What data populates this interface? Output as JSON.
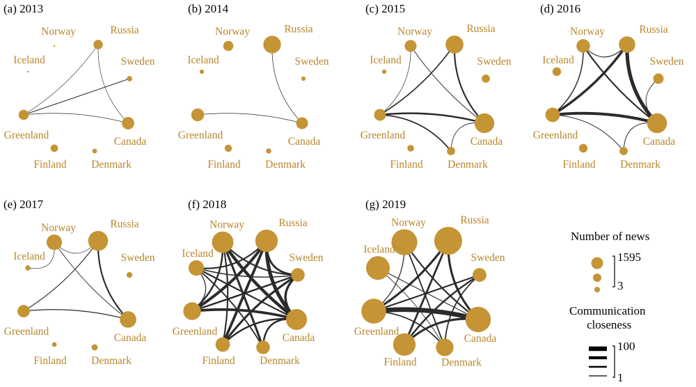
{
  "colors": {
    "node": "#c49435",
    "label": "#b8862b",
    "edge": "#2b2b2b"
  },
  "countries": [
    "Norway",
    "Russia",
    "Iceland",
    "Sweden",
    "Greenland",
    "Canada",
    "Finland",
    "Denmark"
  ],
  "panels": [
    {
      "title": "(a) 2013",
      "nodes": {
        "Norway": 3,
        "Russia": 90,
        "Iceland": 3,
        "Sweden": 14,
        "Greenland": 110,
        "Canada": 190,
        "Finland": 45,
        "Denmark": 8
      },
      "edges": [
        {
          "source": "Greenland",
          "target": "Sweden",
          "closeness": 8
        },
        {
          "source": "Greenland",
          "target": "Russia",
          "closeness": 2
        },
        {
          "source": "Greenland",
          "target": "Canada",
          "closeness": 3
        },
        {
          "source": "Russia",
          "target": "Canada",
          "closeness": 2
        }
      ]
    },
    {
      "title": "(b) 2014",
      "nodes": {
        "Norway": 110,
        "Russia": 450,
        "Iceland": 5,
        "Sweden": 5,
        "Greenland": 210,
        "Canada": 170,
        "Finland": 40,
        "Denmark": 12
      },
      "edges": [
        {
          "source": "Greenland",
          "target": "Canada",
          "closeness": 3
        },
        {
          "source": "Russia",
          "target": "Canada",
          "closeness": 4
        }
      ]
    },
    {
      "title": "(c) 2015",
      "nodes": {
        "Norway": 170,
        "Russia": 470,
        "Iceland": 5,
        "Sweden": 60,
        "Greenland": 170,
        "Canada": 590,
        "Finland": 30,
        "Denmark": 60
      },
      "edges": [
        {
          "source": "Greenland",
          "target": "Canada",
          "closeness": 30
        },
        {
          "source": "Greenland",
          "target": "Russia",
          "closeness": 18
        },
        {
          "source": "Russia",
          "target": "Canada",
          "closeness": 25
        },
        {
          "source": "Norway",
          "target": "Canada",
          "closeness": 8
        },
        {
          "source": "Greenland",
          "target": "Denmark",
          "closeness": 20
        },
        {
          "source": "Denmark",
          "target": "Canada",
          "closeness": 6
        },
        {
          "source": "Norway",
          "target": "Greenland",
          "closeness": 3
        }
      ]
    },
    {
      "title": "(d) 2016",
      "nodes": {
        "Norway": 240,
        "Russia": 380,
        "Iceland": 70,
        "Sweden": 120,
        "Greenland": 280,
        "Canada": 600,
        "Finland": 70,
        "Denmark": 60
      },
      "edges": [
        {
          "source": "Greenland",
          "target": "Canada",
          "closeness": 55
        },
        {
          "source": "Greenland",
          "target": "Russia",
          "closeness": 45
        },
        {
          "source": "Russia",
          "target": "Canada",
          "closeness": 70
        },
        {
          "source": "Norway",
          "target": "Canada",
          "closeness": 25
        },
        {
          "source": "Norway",
          "target": "Greenland",
          "closeness": 15
        },
        {
          "source": "Norway",
          "target": "Russia",
          "closeness": 10
        },
        {
          "source": "Sweden",
          "target": "Canada",
          "closeness": 6
        },
        {
          "source": "Greenland",
          "target": "Denmark",
          "closeness": 8
        },
        {
          "source": "Denmark",
          "target": "Canada",
          "closeness": 8
        }
      ]
    },
    {
      "title": "(e) 2017",
      "nodes": {
        "Norway": 330,
        "Russia": 600,
        "Iceland": 12,
        "Sweden": 18,
        "Greenland": 190,
        "Canada": 390,
        "Finland": 8,
        "Denmark": 25
      },
      "edges": [
        {
          "source": "Greenland",
          "target": "Canada",
          "closeness": 12
        },
        {
          "source": "Greenland",
          "target": "Russia",
          "closeness": 10
        },
        {
          "source": "Russia",
          "target": "Canada",
          "closeness": 25
        },
        {
          "source": "Norway",
          "target": "Canada",
          "closeness": 6
        },
        {
          "source": "Norway",
          "target": "Russia",
          "closeness": 3
        },
        {
          "source": "Norway",
          "target": "Iceland",
          "closeness": 3
        }
      ]
    },
    {
      "title": "(f) 2018",
      "nodes": {
        "Norway": 720,
        "Russia": 800,
        "Iceland": 330,
        "Sweden": 240,
        "Greenland": 460,
        "Canada": 680,
        "Finland": 280,
        "Denmark": 240
      },
      "edges": [
        {
          "source": "Norway",
          "target": "Canada",
          "closeness": 60
        },
        {
          "source": "Norway",
          "target": "Greenland",
          "closeness": 30
        },
        {
          "source": "Norway",
          "target": "Sweden",
          "closeness": 25
        },
        {
          "source": "Norway",
          "target": "Denmark",
          "closeness": 40
        },
        {
          "source": "Russia",
          "target": "Greenland",
          "closeness": 55
        },
        {
          "source": "Russia",
          "target": "Canada",
          "closeness": 70
        },
        {
          "source": "Russia",
          "target": "Iceland",
          "closeness": 25
        },
        {
          "source": "Russia",
          "target": "Finland",
          "closeness": 50
        },
        {
          "source": "Russia",
          "target": "Sweden",
          "closeness": 35
        },
        {
          "source": "Iceland",
          "target": "Canada",
          "closeness": 25
        },
        {
          "source": "Iceland",
          "target": "Sweden",
          "closeness": 15
        },
        {
          "source": "Iceland",
          "target": "Denmark",
          "closeness": 20
        },
        {
          "source": "Iceland",
          "target": "Greenland",
          "closeness": 12
        },
        {
          "source": "Greenland",
          "target": "Sweden",
          "closeness": 30
        },
        {
          "source": "Greenland",
          "target": "Canada",
          "closeness": 50
        },
        {
          "source": "Finland",
          "target": "Canada",
          "closeness": 30
        },
        {
          "source": "Finland",
          "target": "Sweden",
          "closeness": 40
        },
        {
          "source": "Denmark",
          "target": "Canada",
          "closeness": 30
        },
        {
          "source": "Sweden",
          "target": "Canada",
          "closeness": 45
        },
        {
          "source": "Norway",
          "target": "Finland",
          "closeness": 25
        }
      ]
    },
    {
      "title": "(g) 2019",
      "nodes": {
        "Norway": 1100,
        "Russia": 1300,
        "Iceland": 900,
        "Sweden": 250,
        "Greenland": 1000,
        "Canada": 1050,
        "Finland": 800,
        "Denmark": 450
      },
      "edges": [
        {
          "source": "Greenland",
          "target": "Canada",
          "closeness": 95
        },
        {
          "source": "Russia",
          "target": "Greenland",
          "closeness": 40
        },
        {
          "source": "Russia",
          "target": "Finland",
          "closeness": 35
        },
        {
          "source": "Russia",
          "target": "Canada",
          "closeness": 40
        },
        {
          "source": "Norway",
          "target": "Canada",
          "closeness": 25
        },
        {
          "source": "Norway",
          "target": "Denmark",
          "closeness": 20
        },
        {
          "source": "Norway",
          "target": "Greenland",
          "closeness": 12
        },
        {
          "source": "Sweden",
          "target": "Greenland",
          "closeness": 25
        },
        {
          "source": "Sweden",
          "target": "Finland",
          "closeness": 30
        },
        {
          "source": "Sweden",
          "target": "Denmark",
          "closeness": 20
        },
        {
          "source": "Iceland",
          "target": "Canada",
          "closeness": 10
        },
        {
          "source": "Iceland",
          "target": "Denmark",
          "closeness": 5
        },
        {
          "source": "Finland",
          "target": "Canada",
          "closeness": 40
        },
        {
          "source": "Greenland",
          "target": "Denmark",
          "closeness": 20
        }
      ]
    }
  ],
  "legend": {
    "size_title": "Number of news",
    "size_max_label": "1595",
    "size_min_label": "3",
    "size_values": [
      1595,
      300,
      3
    ],
    "closeness_title_line1": "Communication",
    "closeness_title_line2": "closeness",
    "closeness_max_label": "100",
    "closeness_min_label": "1",
    "closeness_values": [
      100,
      60,
      30,
      1
    ]
  }
}
